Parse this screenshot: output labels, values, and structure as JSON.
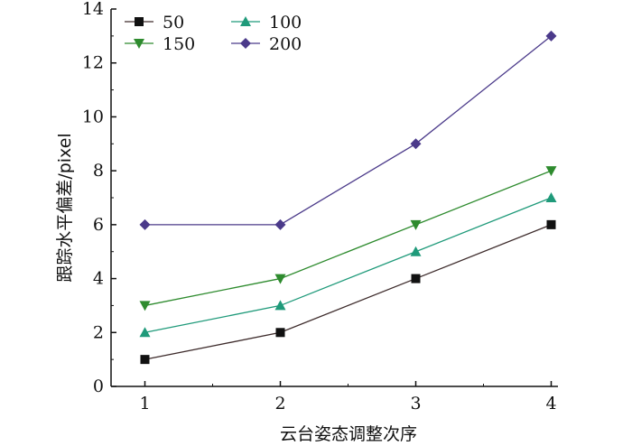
{
  "chart_data": {
    "type": "line",
    "title": "",
    "xlabel": "云台姿态调整次序",
    "ylabel": "跟踪水平偏差/pixel",
    "x": [
      1,
      2,
      3,
      4
    ],
    "x_ticks": [
      1,
      2,
      3,
      4
    ],
    "xlim": [
      0.75,
      4.05
    ],
    "ylim": [
      0,
      14
    ],
    "y_ticks": [
      0,
      2,
      4,
      6,
      8,
      10,
      12,
      14
    ],
    "grid": false,
    "legend": "top-left",
    "series": [
      {
        "name": "50",
        "values": [
          1,
          2,
          4,
          6
        ],
        "color": "#3d2b2b",
        "marker": "square"
      },
      {
        "name": "100",
        "values": [
          2,
          3,
          5,
          7
        ],
        "color": "#1f9a7a",
        "marker": "triangle-up"
      },
      {
        "name": "150",
        "values": [
          3,
          4,
          6,
          8
        ],
        "color": "#2e8b2e",
        "marker": "triangle-down"
      },
      {
        "name": "200",
        "values": [
          6,
          6,
          9,
          13
        ],
        "color": "#4b3a8a",
        "marker": "diamond"
      }
    ]
  }
}
